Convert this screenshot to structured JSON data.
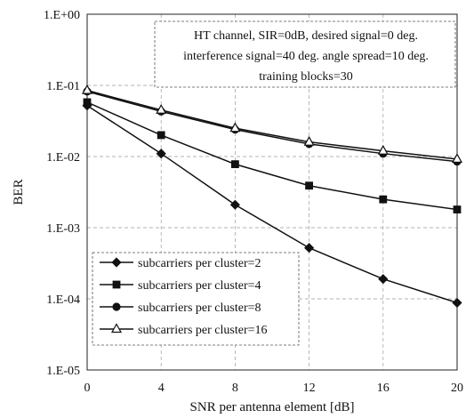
{
  "chart_data": {
    "type": "line",
    "xlabel": "SNR per antenna element [dB]",
    "ylabel": "BER",
    "x": [
      0,
      4,
      8,
      12,
      16,
      20
    ],
    "x_ticks": [
      "0",
      "4",
      "8",
      "12",
      "16",
      "20"
    ],
    "yscale": "log",
    "ylim": [
      1e-05,
      1
    ],
    "y_ticks": [
      "1.E-05",
      "1.E-04",
      "1.E-03",
      "1.E-02",
      "1.E-01",
      "1.E+00"
    ],
    "grid": true,
    "legend_position": "bottom-left",
    "annotation": [
      "HT channel, SIR=0dB, desired signal=0 deg.",
      "interference signal=40 deg. angle spread=10 deg.",
      "training blocks=30"
    ],
    "series": [
      {
        "name": "subcarriers per cluster=2",
        "marker": "diamond",
        "values": [
          0.052,
          0.011,
          0.0021,
          0.00052,
          0.00019,
          8.8e-05
        ]
      },
      {
        "name": "subcarriers per cluster=4",
        "marker": "square",
        "values": [
          0.058,
          0.02,
          0.0078,
          0.0039,
          0.0025,
          0.0018
        ]
      },
      {
        "name": "subcarriers per cluster=8",
        "marker": "circle",
        "values": [
          0.082,
          0.043,
          0.024,
          0.015,
          0.011,
          0.0085
        ]
      },
      {
        "name": "subcarriers per cluster=16",
        "marker": "triangle",
        "values": [
          0.085,
          0.045,
          0.025,
          0.016,
          0.012,
          0.0092
        ]
      }
    ]
  }
}
